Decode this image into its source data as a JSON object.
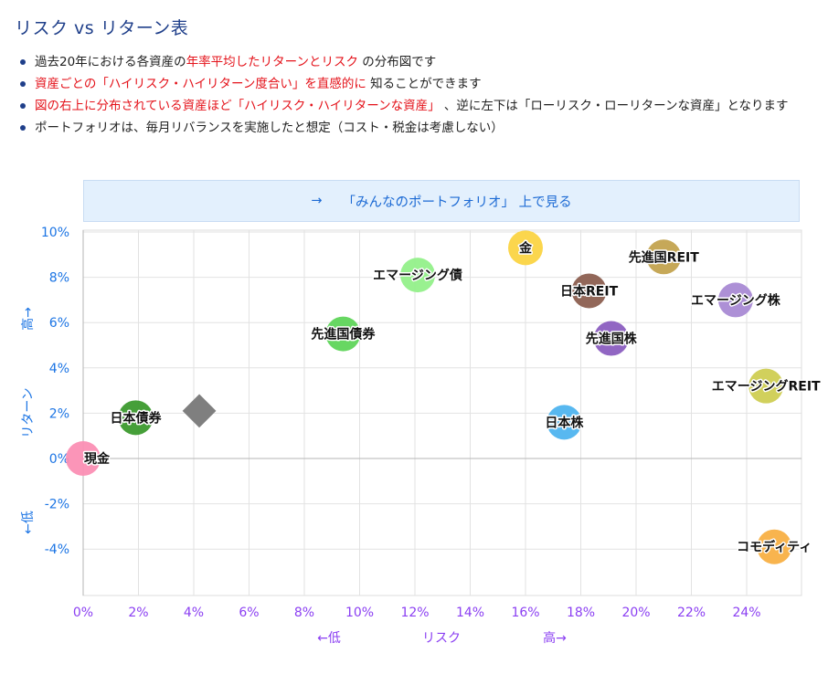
{
  "page": {
    "title": "リスク vs リターン表",
    "notes": [
      [
        {
          "t": "過去20年における各資産の",
          "red": false
        },
        {
          "t": "年率平均したリターンとリスク",
          "red": true
        },
        {
          "t": " の分布図です",
          "red": false
        }
      ],
      [
        {
          "t": "資産ごとの「ハイリスク・ハイリターン度合い」を直感的に",
          "red": true
        },
        {
          "t": " 知ることができます",
          "red": false
        }
      ],
      [
        {
          "t": "図の右上に分布されている資産ほど「ハイリスク・ハイリターンな資産」",
          "red": true
        },
        {
          "t": " 、逆に左下は「ローリスク・ローリターンな資産」となります",
          "red": false
        }
      ],
      [
        {
          "t": "ポートフォリオは、毎月リバランスを実施したと想定（コスト・税金は考慮しない）",
          "red": false
        }
      ]
    ],
    "link": {
      "arrow": "→",
      "label": "「みんなのポートフォリオ」 上で見る"
    }
  },
  "chart_data": {
    "type": "scatter",
    "title": "",
    "xlabel": [
      "←低",
      "リスク",
      "高→"
    ],
    "ylabel": [
      "←低",
      "リターン",
      "高→"
    ],
    "xlim": [
      0,
      26
    ],
    "ylim": [
      -6,
      10
    ],
    "x_ticks": [
      0,
      2,
      4,
      6,
      8,
      10,
      12,
      14,
      16,
      18,
      20,
      22,
      24
    ],
    "x_tick_labels": [
      "0%",
      "2%",
      "4%",
      "6%",
      "8%",
      "10%",
      "12%",
      "14%",
      "16%",
      "18%",
      "20%",
      "22%",
      "24%"
    ],
    "y_ticks": [
      10,
      8,
      6,
      4,
      2,
      0,
      -2,
      -4
    ],
    "y_tick_labels": [
      "10%",
      "8%",
      "6%",
      "4%",
      "2%",
      "0%",
      "-2%",
      "-4%"
    ],
    "grid": true,
    "points": [
      {
        "name": "現金",
        "x": 0.0,
        "y": 0.0,
        "color": "#fb8fb4",
        "label_side": "right"
      },
      {
        "name": "日本債券",
        "x": 1.9,
        "y": 1.8,
        "color": "#3c9a2e",
        "label_side": "center"
      },
      {
        "name": "先進国債券",
        "x": 9.4,
        "y": 5.5,
        "color": "#5fd55a",
        "label_side": "center"
      },
      {
        "name": "エマージング債",
        "x": 12.1,
        "y": 8.1,
        "color": "#94f08a",
        "label_side": "center"
      },
      {
        "name": "金",
        "x": 16.0,
        "y": 9.3,
        "color": "#fbd443",
        "label_side": "center"
      },
      {
        "name": "日本株",
        "x": 17.4,
        "y": 1.6,
        "color": "#4fb4ef",
        "label_side": "center"
      },
      {
        "name": "日本REIT",
        "x": 18.3,
        "y": 7.4,
        "color": "#8c5f50",
        "label_side": "center"
      },
      {
        "name": "先進国株",
        "x": 19.1,
        "y": 5.3,
        "color": "#8b5ec0",
        "label_side": "center"
      },
      {
        "name": "先進国REIT",
        "x": 21.0,
        "y": 8.9,
        "color": "#c3a34f",
        "label_side": "center"
      },
      {
        "name": "エマージング株",
        "x": 23.6,
        "y": 7.0,
        "color": "#a98ad4",
        "label_side": "center"
      },
      {
        "name": "エマージングREIT",
        "x": 24.7,
        "y": 3.2,
        "color": "#cfcd53",
        "label_side": "center"
      },
      {
        "name": "コモディティ",
        "x": 25.0,
        "y": -3.9,
        "color": "#f8b045",
        "label_side": "center"
      }
    ],
    "portfolio_marker": {
      "x": 4.2,
      "y": 2.1,
      "shape": "diamond",
      "color": "#7f7f7f"
    }
  }
}
